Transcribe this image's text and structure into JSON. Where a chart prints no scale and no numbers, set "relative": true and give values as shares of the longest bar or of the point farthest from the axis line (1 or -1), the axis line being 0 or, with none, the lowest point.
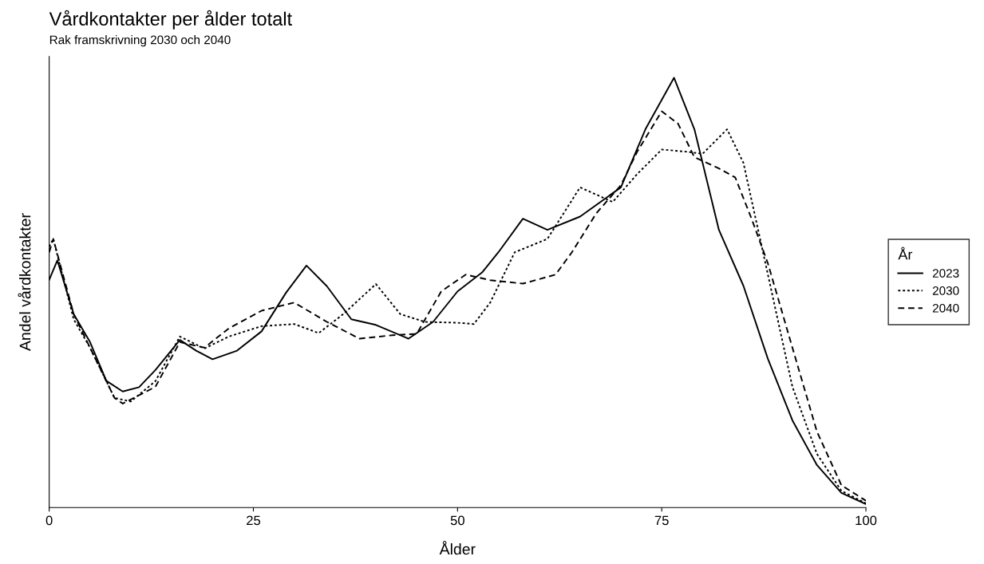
{
  "chart_data": {
    "type": "line",
    "title": "Vårdkontakter per ålder totalt",
    "subtitle": "Rak framskrivning 2030 och 2040",
    "xlabel": "Ålder",
    "ylabel": "Andel vårdkontakter",
    "legend_title": "År",
    "legend": "right",
    "relative": true,
    "grid": false,
    "tick_labels": "x",
    "xlim": [
      0,
      100
    ],
    "xticks": [
      0,
      25,
      50,
      75,
      100
    ],
    "series": [
      {
        "name": "2023",
        "color": "#000000",
        "line_style": "solid",
        "x": [
          0,
          1,
          3,
          5,
          7,
          9,
          11,
          13,
          16,
          18,
          20,
          23,
          26,
          29,
          31.5,
          34,
          37,
          40,
          44,
          47,
          50,
          53,
          55,
          58,
          61,
          65,
          70,
          73,
          76.5,
          79,
          82,
          85,
          88,
          91,
          94,
          97,
          100
        ],
        "values": [
          0.53,
          0.575,
          0.45,
          0.385,
          0.295,
          0.27,
          0.28,
          0.32,
          0.39,
          0.365,
          0.345,
          0.365,
          0.41,
          0.5,
          0.563,
          0.515,
          0.438,
          0.425,
          0.393,
          0.432,
          0.503,
          0.547,
          0.594,
          0.672,
          0.646,
          0.677,
          0.745,
          0.88,
          1.0,
          0.88,
          0.646,
          0.516,
          0.346,
          0.203,
          0.099,
          0.034,
          0.008
        ]
      },
      {
        "name": "2030",
        "color": "#000000",
        "line_style": "dotted",
        "x": [
          0,
          0.5,
          3,
          5,
          8,
          10,
          13,
          16,
          19,
          22,
          26,
          30,
          33,
          36,
          40,
          43,
          46,
          50,
          52,
          54,
          57,
          61,
          65,
          69,
          72,
          75,
          78,
          80,
          83,
          85,
          88,
          91,
          94,
          97,
          100
        ],
        "values": [
          0.607,
          0.625,
          0.438,
          0.372,
          0.255,
          0.247,
          0.294,
          0.398,
          0.37,
          0.398,
          0.422,
          0.427,
          0.406,
          0.45,
          0.52,
          0.45,
          0.432,
          0.43,
          0.427,
          0.477,
          0.594,
          0.625,
          0.745,
          0.711,
          0.776,
          0.833,
          0.828,
          0.823,
          0.88,
          0.802,
          0.542,
          0.281,
          0.125,
          0.039,
          0.01
        ]
      },
      {
        "name": "2040",
        "color": "#000000",
        "line_style": "dashed",
        "x": [
          0,
          0.5,
          3,
          5,
          8,
          9,
          13,
          16,
          19,
          22,
          26,
          30,
          34,
          38,
          42,
          45,
          48,
          51,
          54,
          58,
          62,
          64,
          67,
          70,
          72,
          75,
          77,
          79,
          82,
          84,
          86,
          88,
          91,
          94,
          97,
          100
        ],
        "values": [
          0.594,
          0.625,
          0.45,
          0.372,
          0.255,
          0.242,
          0.281,
          0.385,
          0.372,
          0.417,
          0.458,
          0.477,
          0.432,
          0.393,
          0.401,
          0.404,
          0.503,
          0.542,
          0.529,
          0.521,
          0.542,
          0.594,
          0.685,
          0.75,
          0.828,
          0.922,
          0.893,
          0.815,
          0.789,
          0.768,
          0.672,
          0.568,
          0.372,
          0.177,
          0.052,
          0.016
        ]
      }
    ]
  }
}
